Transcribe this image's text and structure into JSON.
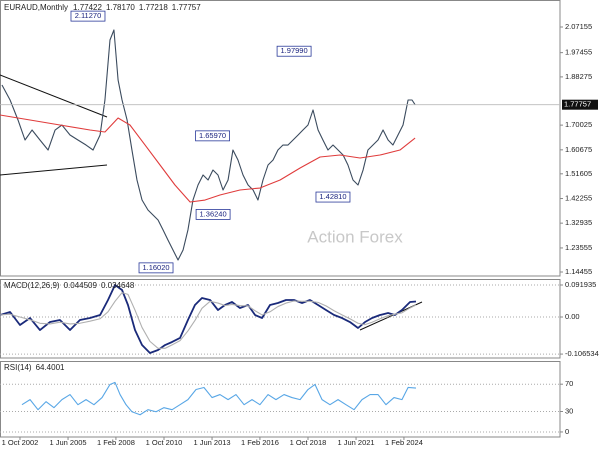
{
  "chart_data": [
    {
      "type": "line",
      "title": "EURAUD,Monthly",
      "last_bar": [
        1.77422,
        {
          "value": 1.7817,
          "label": "1.78170"
        },
        1.77218
      ],
      "xlim": [
        2001.64,
        2032.75
      ],
      "ylim": [
        1.1294,
        2.1737
      ],
      "grid": false,
      "xticks": [
        {
          "value": 2002.75,
          "label": "1 Oct 2002"
        },
        {
          "value": 2005.42,
          "label": "1 Jun 2005"
        },
        {
          "value": 2008.08,
          "label": "1 Feb 2008"
        },
        {
          "value": 2010.75,
          "label": "1 Oct 2010"
        },
        {
          "value": 2013.42,
          "label": "1 Jun 2013"
        },
        {
          "value": 2016.08,
          "label": "1 Feb 2016"
        },
        {
          "value": 2018.75,
          "label": "1 Oct 2018"
        },
        {
          "value": 2021.42,
          "label": "1 Jun 2021"
        },
        {
          "value": 2024.08,
          "label": "1 Feb 2024"
        }
      ],
      "yticks": [
        2.07155,
        1.97455,
        1.88275,
        1.70025,
        1.60675,
        1.51605,
        1.42255,
        1.32935,
        1.23555,
        1.14455
      ],
      "series": [
        {
          "color": "#3b4b5e",
          "x": [
            2001.75,
            2002.2,
            2002.64,
            2003.03,
            2003.42,
            2003.86,
            2004.31,
            2004.7,
            2005.08,
            2005.53,
            2005.97,
            2006.42,
            2006.81,
            2007.2,
            2007.47,
            2007.75,
            2007.97,
            2008.2,
            2008.42,
            2008.7,
            2008.97,
            2009.25,
            2009.53,
            2009.86,
            2010.14,
            2010.42,
            2010.7,
            2010.97,
            2011.25,
            2011.53,
            2011.81,
            2012.08,
            2012.36,
            2012.64,
            2012.92,
            2013.2,
            2013.47,
            2013.75,
            2014.03,
            2014.31,
            2014.58,
            2014.86,
            2015.14,
            2015.42,
            2015.7,
            2015.97,
            2016.25,
            2016.53,
            2016.81,
            2017.08,
            2017.36,
            2017.64,
            2017.92,
            2018.2,
            2018.47,
            2018.75,
            2019.03,
            2019.31,
            2019.58,
            2019.86,
            2020.14,
            2020.42,
            2020.7,
            2020.97,
            2021.25,
            2021.53,
            2021.81,
            2022.08,
            2022.36,
            2022.64,
            2022.92,
            2023.2,
            2023.47,
            2023.75,
            2024.03,
            2024.31,
            2024.53,
            2024.7
          ],
          "values": [
            1.852,
            1.7953,
            1.7197,
            1.644,
            1.6818,
            1.644,
            1.6061,
            1.6818,
            1.7007,
            1.6629,
            1.644,
            1.625,
            1.6061,
            1.6629,
            1.7953,
            2.0224,
            2.0602,
            1.871,
            1.7953,
            1.7197,
            1.6061,
            1.4926,
            1.4169,
            1.3791,
            1.3602,
            1.3412,
            1.3034,
            1.2656,
            1.2277,
            1.1899,
            1.2277,
            1.3034,
            1.4169,
            1.4737,
            1.5115,
            1.4926,
            1.5304,
            1.5115,
            1.4548,
            1.4926,
            1.6061,
            1.5683,
            1.5115,
            1.4737,
            1.4548,
            1.4169,
            1.4926,
            1.5494,
            1.5683,
            1.6061,
            1.625,
            1.625,
            1.644,
            1.6629,
            1.6818,
            1.7007,
            1.7575,
            1.6818,
            1.644,
            1.6061,
            1.625,
            1.6061,
            1.5872,
            1.5494,
            1.4926,
            1.4737,
            1.5304,
            1.6061,
            1.625,
            1.644,
            1.6818,
            1.644,
            1.625,
            1.6629,
            1.7007,
            1.7953,
            1.7953,
            1.77757
          ]
        },
        {
          "color": "#e03c3c",
          "x": [
            2001.64,
            2003.31,
            2004.97,
            2006.64,
            2007.47,
            2008.2,
            2008.86,
            2009.7,
            2010.53,
            2011.36,
            2012.2,
            2013.03,
            2013.86,
            2014.97,
            2016.08,
            2017.2,
            2018.31,
            2019.42,
            2020.53,
            2021.64,
            2022.75,
            2023.86,
            2024.7
          ],
          "values": [
            1.7386,
            1.7197,
            1.7007,
            1.6818,
            1.6742,
            1.7272,
            1.7007,
            1.625,
            1.5494,
            1.4737,
            1.4094,
            1.4169,
            1.4359,
            1.4548,
            1.4623,
            1.4926,
            1.538,
            1.5797,
            1.5872,
            1.5759,
            1.5872,
            1.6061,
            1.6515
          ]
        }
      ],
      "annotations": [
        {
          "x": 2007.75,
          "value": 2.1127,
          "label": "2.11270"
        },
        {
          "x": 2019.2,
          "value": 1.9799,
          "label": "1.97990"
        },
        {
          "x": 2014.67,
          "value": 1.6597,
          "label": "1.65970"
        },
        {
          "x": 2014.7,
          "value": 1.3624,
          "label": "1.36240"
        },
        {
          "x": 2011.53,
          "value": 1.1602,
          "label": "1.16020"
        },
        {
          "x": 2021.36,
          "value": 1.4281,
          "label": "1.42810"
        }
      ],
      "watermark": "Action Forex"
    },
    {
      "type": "line",
      "title": "MACD(12,26,9)",
      "ylim": [
        -0.1178,
        0.1092
      ],
      "grid": true,
      "yticks": [
        0.091935,
        {
          "value": 0,
          "label": "0.00"
        },
        -0.106534
      ],
      "series": [
        {
          "color": "#1a2a7a",
          "x": [
            2001.64,
            2002.2,
            2002.75,
            2003.31,
            2003.86,
            2004.42,
            2004.97,
            2005.53,
            2006.08,
            2006.64,
            2007.2,
            2007.64,
            2008.03,
            2008.42,
            2008.75,
            2009.14,
            2009.53,
            2009.97,
            2010.42,
            2010.81,
            2011.2,
            2011.64,
            2012.08,
            2012.47,
            2012.86,
            2013.31,
            2013.75,
            2014.14,
            2014.53,
            2014.97,
            2015.42,
            2015.81,
            2016.2,
            2016.64,
            2017.08,
            2017.53,
            2017.97,
            2018.42,
            2018.86,
            2019.31,
            2019.75,
            2020.2,
            2020.64,
            2021.08,
            2021.53,
            2021.92,
            2022.31,
            2022.75,
            2023.2,
            2023.58,
            2023.97,
            2024.42,
            2024.75
          ],
          "values": [
            0.0057,
            0.0144,
            -0.023,
            -0.0029,
            -0.0374,
            -0.0144,
            -0.0086,
            -0.0374,
            -0.0086,
            -0.0029,
            0.0057,
            0.0489,
            0.092,
            0.0776,
            0.0345,
            -0.0374,
            -0.0805,
            -0.1034,
            -0.0948,
            -0.0805,
            -0.0718,
            -0.0603,
            -0.0086,
            0.0345,
            0.0546,
            0.0489,
            0.0201,
            0.0345,
            0.0431,
            0.0259,
            0.0345,
            0.0057,
            -0.0029,
            0.0345,
            0.0402,
            0.0489,
            0.0489,
            0.0402,
            0.0489,
            0.0345,
            0.0201,
            0.0057,
            -0.0029,
            -0.0144,
            -0.0316,
            -0.0144,
            -0.0029,
            0.0057,
            0.0115,
            0.0057,
            0.0201,
            0.0431,
            0.044509
          ]
        },
        {
          "color": "#b0b0b0",
          "x": [
            2001.64,
            2002.2,
            2002.75,
            2003.31,
            2003.86,
            2004.42,
            2004.97,
            2005.53,
            2006.08,
            2006.64,
            2007.2,
            2007.64,
            2008.03,
            2008.42,
            2008.75,
            2009.14,
            2009.53,
            2009.97,
            2010.42,
            2010.81,
            2011.2,
            2011.64,
            2012.08,
            2012.47,
            2012.86,
            2013.31,
            2013.75,
            2014.14,
            2014.53,
            2014.97,
            2015.42,
            2015.81,
            2016.2,
            2016.64,
            2017.08,
            2017.53,
            2017.97,
            2018.42,
            2018.86,
            2019.31,
            2019.75,
            2020.2,
            2020.64,
            2021.08,
            2021.53,
            2021.92,
            2022.31,
            2022.75,
            2023.2,
            2023.58,
            2023.97,
            2024.42,
            2024.75
          ],
          "values": [
            0.006,
            0.008,
            0,
            -0.008,
            -0.018,
            -0.02,
            -0.015,
            -0.02,
            -0.018,
            -0.012,
            -0.005,
            0.015,
            0.045,
            0.07,
            0.065,
            0.02,
            -0.03,
            -0.07,
            -0.09,
            -0.09,
            -0.08,
            -0.068,
            -0.04,
            -0.01,
            0.025,
            0.045,
            0.04,
            0.033,
            0.036,
            0.033,
            0.032,
            0.018,
            0.006,
            0.015,
            0.03,
            0.04,
            0.046,
            0.045,
            0.045,
            0.042,
            0.032,
            0.018,
            0.006,
            -0.005,
            -0.018,
            -0.022,
            -0.015,
            -0.005,
            0.004,
            0.008,
            0.012,
            0.026,
            0.034648
          ]
        }
      ]
    },
    {
      "type": "line",
      "title": "RSI(14)",
      "ylim": [
        -7.4,
        104
      ],
      "grid": true,
      "yticks": [
        70,
        30,
        0
      ],
      "series": [
        {
          "color": "#59a7e6",
          "x": [
            2002.86,
            2003.31,
            2003.75,
            2004.2,
            2004.64,
            2005.08,
            2005.53,
            2005.97,
            2006.42,
            2006.86,
            2007.31,
            2007.75,
            2008.03,
            2008.31,
            2008.64,
            2008.97,
            2009.42,
            2009.86,
            2010.31,
            2010.75,
            2011.2,
            2011.64,
            2012.08,
            2012.53,
            2012.97,
            2013.42,
            2013.86,
            2014.31,
            2014.75,
            2015.2,
            2015.64,
            2016.08,
            2016.53,
            2016.97,
            2017.42,
            2017.86,
            2018.31,
            2018.75,
            2019.14,
            2019.53,
            2019.97,
            2020.42,
            2020.86,
            2021.31,
            2021.75,
            2022.2,
            2022.64,
            2023.08,
            2023.53,
            2023.97,
            2024.31,
            2024.75
          ],
          "values": [
            40,
            47.4,
            32.6,
            44.4,
            35.6,
            47.4,
            54.8,
            40,
            47.4,
            40,
            50.4,
            69.6,
            72.6,
            54.8,
            40,
            29.6,
            25.2,
            32.6,
            29.6,
            35.6,
            32.6,
            40,
            47.4,
            62.2,
            65.2,
            50.4,
            54.8,
            47.4,
            54.8,
            40,
            47.4,
            40,
            54.8,
            47.4,
            54.8,
            50.4,
            47.4,
            62.2,
            69.6,
            47.4,
            40,
            47.4,
            40,
            32.6,
            47.4,
            54.8,
            54.8,
            40,
            50.4,
            47.4,
            65.2,
            64.4001
          ]
        }
      ]
    }
  ]
}
